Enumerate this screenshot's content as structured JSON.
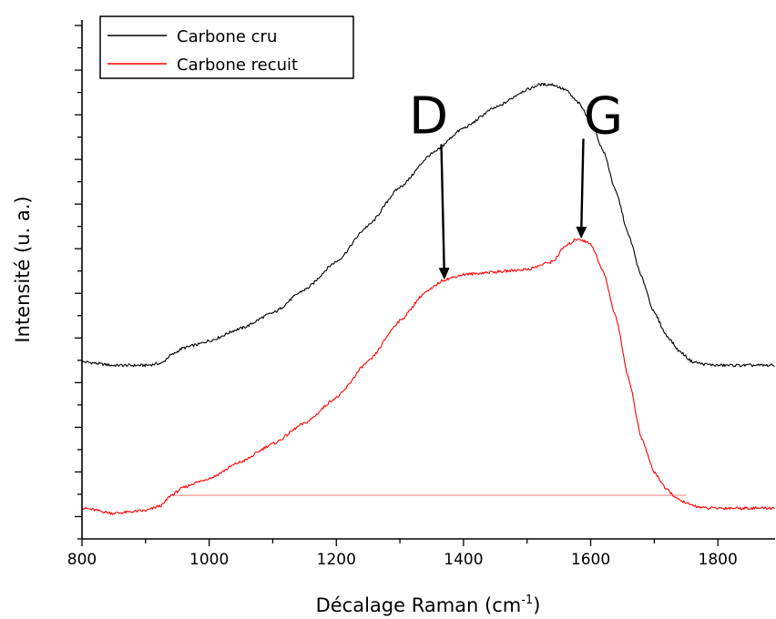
{
  "chart_data": {
    "type": "line",
    "title": "",
    "xlabel": "Décalage Raman (cm",
    "xlabel_sup": "-1",
    "xlabel_suffix": ")",
    "ylabel": "Intensité (u. a.)",
    "xlim": [
      800,
      1890
    ],
    "ylim": [
      0,
      1
    ],
    "x_ticks": [
      "800",
      "1000",
      "1200",
      "1400",
      "1600",
      "1800"
    ],
    "y_tick_labels": "none",
    "grid": false,
    "legend_position": "top-left",
    "series": [
      {
        "name": "Carbone cru",
        "color": "#000000",
        "x": [
          800,
          850,
          900,
          925,
          940,
          960,
          980,
          1000,
          1050,
          1100,
          1150,
          1200,
          1250,
          1300,
          1350,
          1400,
          1450,
          1500,
          1520,
          1540,
          1560,
          1580,
          1600,
          1620,
          1640,
          1660,
          1680,
          1700,
          1720,
          1740,
          1760,
          1780,
          1800,
          1850,
          1890
        ],
        "y": [
          0.345,
          0.338,
          0.338,
          0.342,
          0.358,
          0.372,
          0.378,
          0.386,
          0.41,
          0.44,
          0.485,
          0.54,
          0.61,
          0.685,
          0.75,
          0.8,
          0.84,
          0.875,
          0.885,
          0.885,
          0.875,
          0.85,
          0.815,
          0.755,
          0.675,
          0.59,
          0.51,
          0.44,
          0.395,
          0.365,
          0.345,
          0.34,
          0.338,
          0.338,
          0.338
        ]
      },
      {
        "name": "Carbone recuit",
        "color": "#ff0000",
        "x": [
          800,
          850,
          900,
          925,
          940,
          960,
          980,
          1000,
          1050,
          1100,
          1150,
          1200,
          1250,
          1300,
          1340,
          1370,
          1400,
          1450,
          1500,
          1540,
          1560,
          1580,
          1600,
          1620,
          1640,
          1660,
          1680,
          1700,
          1720,
          1740,
          1760,
          1780,
          1800,
          1850,
          1890
        ],
        "y": [
          0.06,
          0.05,
          0.055,
          0.065,
          0.085,
          0.1,
          0.11,
          0.118,
          0.15,
          0.185,
          0.225,
          0.275,
          0.345,
          0.425,
          0.48,
          0.505,
          0.515,
          0.52,
          0.525,
          0.54,
          0.57,
          0.585,
          0.575,
          0.52,
          0.43,
          0.31,
          0.195,
          0.13,
          0.095,
          0.075,
          0.065,
          0.06,
          0.06,
          0.06,
          0.06
        ]
      }
    ],
    "baseline_line": {
      "x": [
        940,
        1750
      ],
      "y": 0.085,
      "color": "#ff0000"
    },
    "annotations": [
      {
        "text": "D",
        "text_x": 1345,
        "text_y": 0.79,
        "point_x": 1370,
        "point_y": 0.505
      },
      {
        "text": "G",
        "text_x": 1620,
        "text_y": 0.79,
        "point_x": 1585,
        "point_y": 0.585
      }
    ]
  }
}
